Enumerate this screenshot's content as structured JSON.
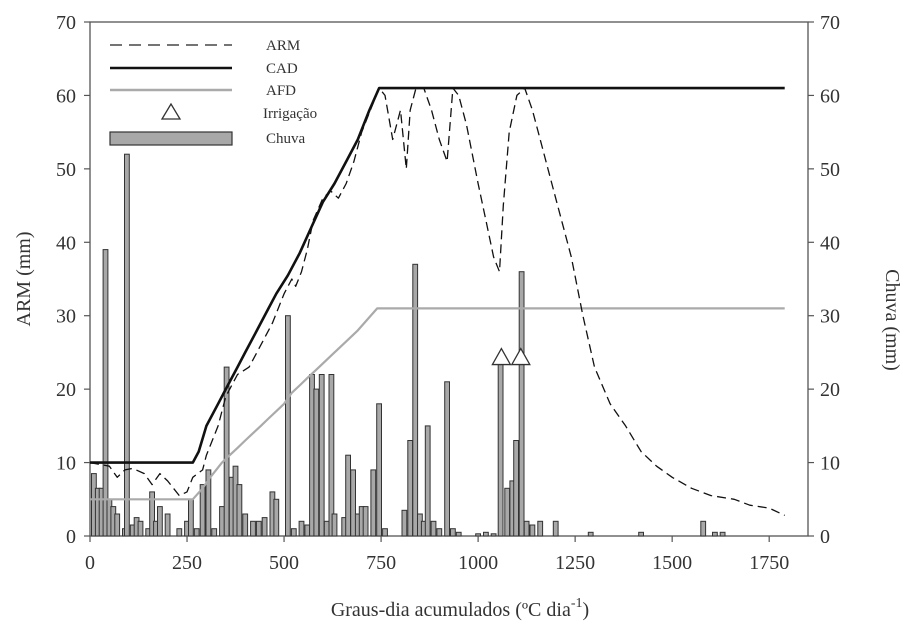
{
  "chart_data": {
    "type": "line",
    "xlabel": "Graus-dia acumulados (ºC dia",
    "xlabel_sup": "-1",
    "xlabel_close": ")",
    "ylabel_left": "ARM (mm)",
    "ylabel_right": "Chuva (mm)",
    "xlim": [
      0,
      1850
    ],
    "ylim": [
      0,
      70
    ],
    "x_ticks": [
      0,
      250,
      500,
      750,
      1000,
      1250,
      1500,
      1750
    ],
    "y_ticks": [
      0,
      10,
      20,
      30,
      40,
      50,
      60,
      70
    ],
    "legend": {
      "placement": "top-left",
      "entries": [
        {
          "label": "ARM",
          "style": "dashed"
        },
        {
          "label": "CAD",
          "style": "solid-black"
        },
        {
          "label": "AFD",
          "style": "solid-gray"
        },
        {
          "label": "Irrigação",
          "style": "triangle"
        },
        {
          "label": "Chuva",
          "style": "bar"
        }
      ]
    },
    "series": [
      {
        "name": "CAD",
        "color": "#111111",
        "points": [
          [
            0,
            10
          ],
          [
            265,
            10
          ],
          [
            280,
            11.5
          ],
          [
            300,
            15
          ],
          [
            330,
            18
          ],
          [
            350,
            20
          ],
          [
            380,
            23
          ],
          [
            400,
            25
          ],
          [
            430,
            28
          ],
          [
            460,
            31
          ],
          [
            480,
            33
          ],
          [
            510,
            35.5
          ],
          [
            540,
            38.5
          ],
          [
            570,
            42
          ],
          [
            600,
            45.5
          ],
          [
            630,
            48
          ],
          [
            660,
            51
          ],
          [
            690,
            54
          ],
          [
            720,
            58
          ],
          [
            745,
            61
          ],
          [
            1790,
            61
          ]
        ]
      },
      {
        "name": "AFD",
        "color": "#aaaaaa",
        "points": [
          [
            0,
            5
          ],
          [
            265,
            5
          ],
          [
            290,
            6.5
          ],
          [
            310,
            8
          ],
          [
            340,
            10
          ],
          [
            360,
            11
          ],
          [
            380,
            12
          ],
          [
            400,
            13
          ],
          [
            420,
            14
          ],
          [
            440,
            15
          ],
          [
            460,
            16
          ],
          [
            480,
            17
          ],
          [
            500,
            18
          ],
          [
            520,
            19.5
          ],
          [
            540,
            20.5
          ],
          [
            560,
            21.5
          ],
          [
            580,
            22.5
          ],
          [
            600,
            23.5
          ],
          [
            630,
            25
          ],
          [
            660,
            26.5
          ],
          [
            690,
            28
          ],
          [
            715,
            29.5
          ],
          [
            740,
            31
          ],
          [
            1790,
            31
          ]
        ]
      },
      {
        "name": "ARM",
        "color": "#111111",
        "dashed": true,
        "points": [
          [
            0,
            10
          ],
          [
            50,
            9.5
          ],
          [
            70,
            8
          ],
          [
            90,
            9
          ],
          [
            110,
            9.2
          ],
          [
            140,
            8.5
          ],
          [
            160,
            7
          ],
          [
            180,
            8.5
          ],
          [
            200,
            7.5
          ],
          [
            230,
            5.5
          ],
          [
            250,
            6
          ],
          [
            265,
            8
          ],
          [
            290,
            9
          ],
          [
            300,
            11
          ],
          [
            330,
            15
          ],
          [
            350,
            19
          ],
          [
            380,
            22
          ],
          [
            410,
            23
          ],
          [
            440,
            26
          ],
          [
            470,
            29
          ],
          [
            500,
            33
          ],
          [
            520,
            35
          ],
          [
            530,
            34
          ],
          [
            545,
            36
          ],
          [
            560,
            39
          ],
          [
            575,
            43
          ],
          [
            600,
            46
          ],
          [
            620,
            47
          ],
          [
            640,
            46
          ],
          [
            660,
            48
          ],
          [
            680,
            51
          ],
          [
            700,
            55
          ],
          [
            730,
            59
          ],
          [
            745,
            61
          ],
          [
            760,
            60
          ],
          [
            780,
            54
          ],
          [
            800,
            58
          ],
          [
            815,
            50
          ],
          [
            825,
            58
          ],
          [
            840,
            61
          ],
          [
            860,
            61
          ],
          [
            880,
            58
          ],
          [
            900,
            54
          ],
          [
            920,
            51
          ],
          [
            935,
            61
          ],
          [
            950,
            60
          ],
          [
            970,
            56
          ],
          [
            1000,
            48
          ],
          [
            1020,
            43
          ],
          [
            1040,
            38
          ],
          [
            1055,
            36
          ],
          [
            1065,
            45
          ],
          [
            1080,
            55
          ],
          [
            1100,
            60
          ],
          [
            1120,
            61
          ],
          [
            1140,
            58
          ],
          [
            1160,
            54
          ],
          [
            1190,
            48
          ],
          [
            1210,
            44
          ],
          [
            1240,
            38
          ],
          [
            1270,
            30
          ],
          [
            1300,
            23
          ],
          [
            1340,
            18
          ],
          [
            1380,
            15
          ],
          [
            1420,
            11.5
          ],
          [
            1460,
            9.5
          ],
          [
            1500,
            8
          ],
          [
            1550,
            6.5
          ],
          [
            1600,
            5.5
          ],
          [
            1660,
            5
          ],
          [
            1700,
            4.2
          ],
          [
            1750,
            3.8
          ],
          [
            1790,
            2.8
          ]
        ]
      }
    ],
    "irrigation_x": [
      1060,
      1110
    ],
    "irrigation_y": 24.3,
    "rain": [
      {
        "x": 10,
        "v": 8.5
      },
      {
        "x": 20,
        "v": 6.5
      },
      {
        "x": 30,
        "v": 6.5
      },
      {
        "x": 40,
        "v": 39
      },
      {
        "x": 50,
        "v": 5
      },
      {
        "x": 60,
        "v": 4
      },
      {
        "x": 70,
        "v": 3
      },
      {
        "x": 90,
        "v": 1
      },
      {
        "x": 95,
        "v": 52
      },
      {
        "x": 110,
        "v": 1.5
      },
      {
        "x": 120,
        "v": 2.5
      },
      {
        "x": 130,
        "v": 2
      },
      {
        "x": 150,
        "v": 1
      },
      {
        "x": 160,
        "v": 6
      },
      {
        "x": 170,
        "v": 2
      },
      {
        "x": 180,
        "v": 4
      },
      {
        "x": 200,
        "v": 3
      },
      {
        "x": 230,
        "v": 1
      },
      {
        "x": 250,
        "v": 2
      },
      {
        "x": 260,
        "v": 5
      },
      {
        "x": 275,
        "v": 1
      },
      {
        "x": 290,
        "v": 7
      },
      {
        "x": 305,
        "v": 9
      },
      {
        "x": 320,
        "v": 1
      },
      {
        "x": 340,
        "v": 4
      },
      {
        "x": 352,
        "v": 23
      },
      {
        "x": 365,
        "v": 8
      },
      {
        "x": 375,
        "v": 9.5
      },
      {
        "x": 385,
        "v": 7
      },
      {
        "x": 400,
        "v": 3
      },
      {
        "x": 420,
        "v": 2
      },
      {
        "x": 435,
        "v": 2
      },
      {
        "x": 450,
        "v": 2.5
      },
      {
        "x": 470,
        "v": 6
      },
      {
        "x": 480,
        "v": 5
      },
      {
        "x": 510,
        "v": 30
      },
      {
        "x": 525,
        "v": 1
      },
      {
        "x": 545,
        "v": 2
      },
      {
        "x": 560,
        "v": 1.5
      },
      {
        "x": 572,
        "v": 22
      },
      {
        "x": 583,
        "v": 20
      },
      {
        "x": 597,
        "v": 22
      },
      {
        "x": 610,
        "v": 2
      },
      {
        "x": 622,
        "v": 22
      },
      {
        "x": 630,
        "v": 3
      },
      {
        "x": 655,
        "v": 2.5
      },
      {
        "x": 665,
        "v": 11
      },
      {
        "x": 678,
        "v": 9
      },
      {
        "x": 690,
        "v": 3
      },
      {
        "x": 700,
        "v": 4
      },
      {
        "x": 710,
        "v": 4
      },
      {
        "x": 730,
        "v": 9
      },
      {
        "x": 745,
        "v": 18
      },
      {
        "x": 760,
        "v": 1
      },
      {
        "x": 810,
        "v": 3.5
      },
      {
        "x": 825,
        "v": 13
      },
      {
        "x": 838,
        "v": 37
      },
      {
        "x": 850,
        "v": 3
      },
      {
        "x": 860,
        "v": 2
      },
      {
        "x": 870,
        "v": 15
      },
      {
        "x": 885,
        "v": 2
      },
      {
        "x": 900,
        "v": 1
      },
      {
        "x": 920,
        "v": 21
      },
      {
        "x": 935,
        "v": 1
      },
      {
        "x": 950,
        "v": 0.5
      },
      {
        "x": 1000,
        "v": 0.3
      },
      {
        "x": 1020,
        "v": 0.5
      },
      {
        "x": 1040,
        "v": 0.3
      },
      {
        "x": 1058,
        "v": 24
      },
      {
        "x": 1075,
        "v": 6.5
      },
      {
        "x": 1088,
        "v": 7.5
      },
      {
        "x": 1098,
        "v": 13
      },
      {
        "x": 1112,
        "v": 36
      },
      {
        "x": 1125,
        "v": 2
      },
      {
        "x": 1140,
        "v": 1.5
      },
      {
        "x": 1160,
        "v": 2
      },
      {
        "x": 1200,
        "v": 2
      },
      {
        "x": 1290,
        "v": 0.5
      },
      {
        "x": 1420,
        "v": 0.5
      },
      {
        "x": 1580,
        "v": 2
      },
      {
        "x": 1610,
        "v": 0.5
      },
      {
        "x": 1630,
        "v": 0.5
      }
    ]
  }
}
